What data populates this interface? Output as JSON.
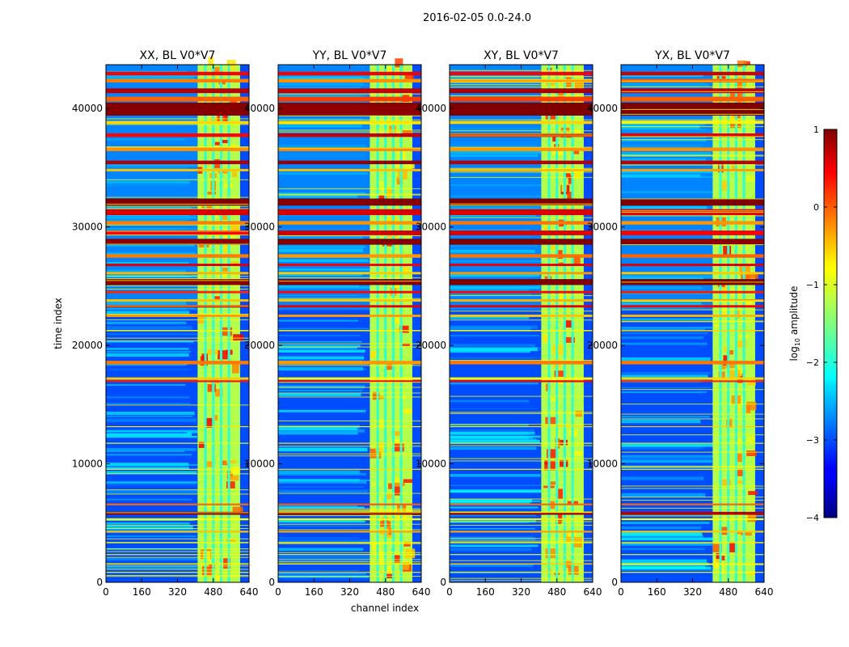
{
  "suptitle": "2016-02-05 0.0-24.0",
  "chart_data": {
    "type": "heatmap",
    "xlabel": "channel index",
    "ylabel": "time index",
    "x_range": [
      0,
      640
    ],
    "y_range": [
      0,
      43700
    ],
    "xticks": [
      0,
      160,
      320,
      480,
      640
    ],
    "yticks": [
      0,
      10000,
      20000,
      30000,
      40000
    ],
    "colormap": "jet",
    "panels": [
      {
        "title": "XX, BL V0*V7",
        "product": "XX"
      },
      {
        "title": "YY, BL V0*V7",
        "product": "YY"
      },
      {
        "title": "XY, BL V0*V7",
        "product": "XY"
      },
      {
        "title": "YX, BL V0*V7",
        "product": "YX"
      }
    ],
    "active_band_channels": [
      410,
      600
    ],
    "band_gap_channels": [
      445,
      480,
      515,
      550
    ],
    "colorbar": {
      "label": "log10 amplitude",
      "label_main": "log",
      "label_sub": "10",
      "label_tail": " amplitude",
      "range": [
        -4,
        1
      ],
      "ticks": [
        "1",
        "0",
        "−1",
        "−2",
        "−3",
        "−4"
      ],
      "tick_values": [
        1,
        0,
        -1,
        -2,
        -3,
        -4
      ]
    }
  }
}
